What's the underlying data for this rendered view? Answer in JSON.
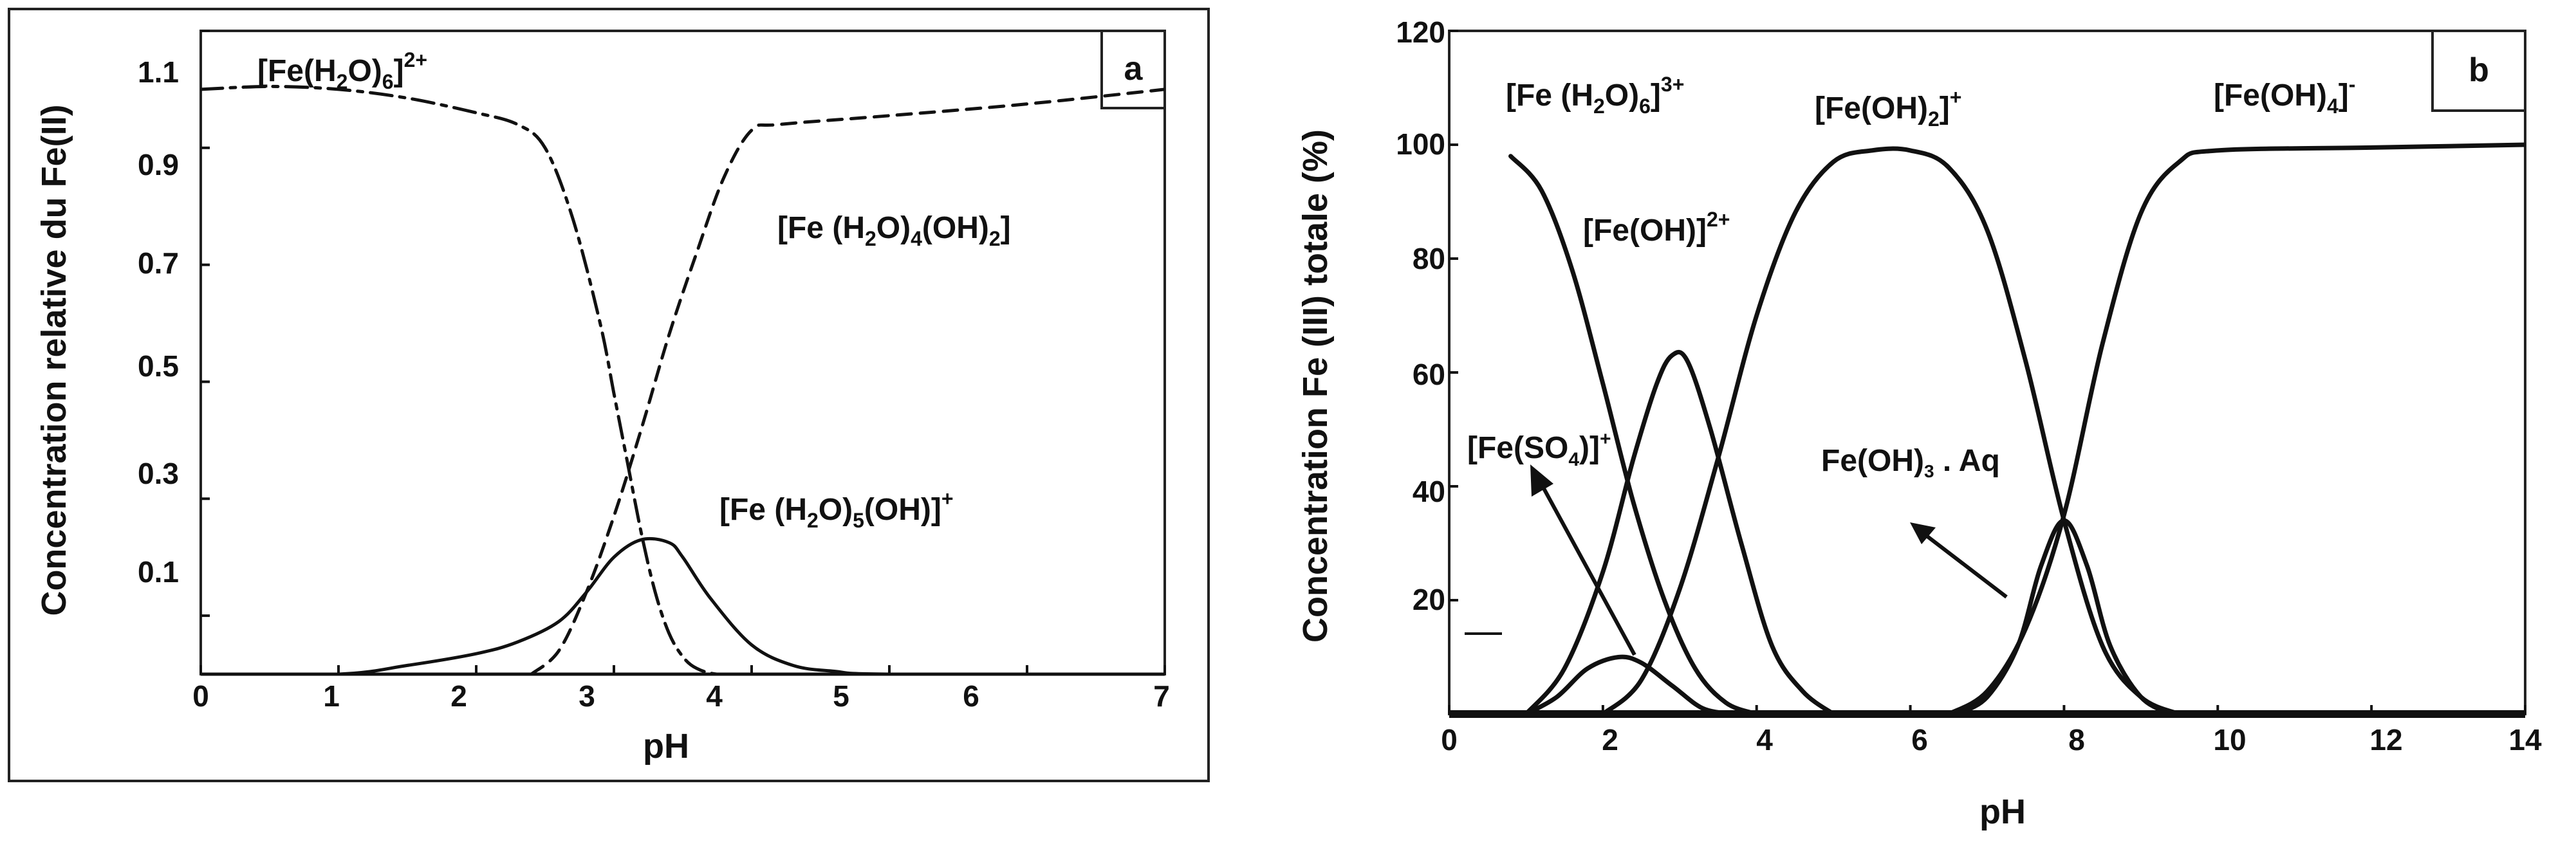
{
  "figure": {
    "panels": [
      {
        "letter": "a",
        "ylabel": "Concentration relative du Fe(II)",
        "xlabel": "pH",
        "xticks": [
          "0",
          "1",
          "2",
          "3",
          "4",
          "5",
          "6",
          "7"
        ],
        "yticks": [
          "0.1",
          "0.3",
          "0.5",
          "0.7",
          "0.9",
          "1.1"
        ],
        "species": [
          {
            "base": "[Fe(H",
            "sub": "2",
            "mid": "O)",
            "sub2": "6",
            "end": "]",
            "sup": "2+"
          },
          {
            "base": "[Fe (H",
            "sub": "2",
            "mid": "O)",
            "sub2": "4",
            "mid2": "(OH)",
            "sub3": "2",
            "end": "]"
          },
          {
            "base": "[Fe (H",
            "sub": "2",
            "mid": "O)",
            "sub2": "5",
            "mid2": "(OH)]",
            "sup": "+"
          }
        ]
      },
      {
        "letter": "b",
        "ylabel": "Concentration Fe (III) totale (%)",
        "xlabel": "pH",
        "xticks": [
          "0",
          "2",
          "4",
          "6",
          "8",
          "10",
          "12",
          "14"
        ],
        "yticks": [
          "20",
          "40",
          "60",
          "80",
          "100",
          "120"
        ],
        "species": [
          {
            "base": "[Fe (H",
            "sub": "2",
            "mid": "O)",
            "sub2": "6",
            "end": "]",
            "sup": "3+"
          },
          {
            "base": "[Fe(OH)",
            "sub": "2",
            "end": "]",
            "sup": "+"
          },
          {
            "base": "[Fe(OH)",
            "sub": "4",
            "end": "]",
            "sup": "-"
          },
          {
            "base": "[Fe(OH)]",
            "sup": "2+"
          },
          {
            "base": "[Fe(SO",
            "sub": "4",
            "end": ")]",
            "sup": "+"
          },
          {
            "base": "Fe(OH)",
            "sub": "3",
            "end": " . Aq"
          }
        ]
      }
    ]
  },
  "chart_data": [
    {
      "type": "line",
      "xlabel": "pH",
      "ylabel": "Concentration relative du Fe(II)",
      "xlim": [
        0,
        7
      ],
      "ylim": [
        0,
        1.1
      ],
      "grid": false,
      "series": [
        {
          "name": "[Fe(H2O)6]2+",
          "style": "dash-dot",
          "x": [
            0,
            0.5,
            1,
            1.5,
            2,
            2.3,
            2.5,
            2.7,
            2.9,
            3.0,
            3.1,
            3.2,
            3.3,
            3.4,
            3.5,
            3.6,
            3.75,
            4.0
          ],
          "y": [
            1.0,
            1.005,
            1.0,
            0.985,
            0.96,
            0.94,
            0.9,
            0.78,
            0.6,
            0.48,
            0.36,
            0.24,
            0.14,
            0.07,
            0.03,
            0.01,
            0.0,
            0.0
          ]
        },
        {
          "name": "[Fe (H2O)4(OH)2]",
          "style": "dashed",
          "x": [
            2.4,
            2.6,
            2.8,
            3.0,
            3.2,
            3.4,
            3.6,
            3.8,
            4.0,
            4.2,
            5.0,
            6.0,
            7.0
          ],
          "y": [
            0.0,
            0.04,
            0.14,
            0.27,
            0.42,
            0.58,
            0.72,
            0.85,
            0.93,
            0.94,
            0.955,
            0.975,
            1.0
          ]
        },
        {
          "name": "[Fe (H2O)5(OH)]+",
          "style": "solid",
          "x": [
            0,
            1,
            1.5,
            2,
            2.3,
            2.6,
            2.8,
            3.0,
            3.2,
            3.4,
            3.5,
            3.7,
            4.0,
            4.3,
            4.6,
            5.0,
            7.0
          ],
          "y": [
            0.0,
            0.0,
            0.015,
            0.035,
            0.055,
            0.09,
            0.14,
            0.2,
            0.23,
            0.225,
            0.2,
            0.13,
            0.05,
            0.015,
            0.005,
            0.0,
            0.0
          ]
        }
      ]
    },
    {
      "type": "line",
      "xlabel": "pH",
      "ylabel": "Concentration Fe (III) totale (%)",
      "xlim": [
        0,
        14
      ],
      "ylim": [
        0,
        120
      ],
      "grid": false,
      "series": [
        {
          "name": "[Fe (H2O)6]3+",
          "style": "solid",
          "x": [
            0.8,
            1.2,
            1.6,
            2.0,
            2.4,
            2.8,
            3.2,
            3.6,
            4.0
          ],
          "y": [
            98,
            92,
            78,
            58,
            37,
            20,
            8,
            2,
            0
          ]
        },
        {
          "name": "[Fe(OH)]2+",
          "style": "solid",
          "x": [
            1.0,
            1.5,
            2.0,
            2.4,
            2.7,
            2.9,
            3.1,
            3.4,
            3.8,
            4.2,
            4.6,
            5.0
          ],
          "y": [
            0,
            8,
            25,
            45,
            58,
            63,
            62,
            50,
            30,
            12,
            4,
            0
          ]
        },
        {
          "name": "[Fe(OH)2]+",
          "style": "solid",
          "x": [
            2.0,
            2.5,
            3.0,
            3.5,
            4.0,
            4.5,
            5.0,
            5.5,
            6.0,
            6.5,
            7.0,
            7.5,
            8.0,
            8.5,
            9.0,
            9.5
          ],
          "y": [
            0,
            6,
            22,
            45,
            70,
            88,
            97,
            99,
            99,
            96,
            85,
            62,
            34,
            12,
            3,
            0
          ]
        },
        {
          "name": "[Fe(OH)4]-",
          "style": "solid",
          "x": [
            6.5,
            7.0,
            7.5,
            8.0,
            8.5,
            9.0,
            9.5,
            10.0,
            12.0,
            14.0
          ],
          "y": [
            0,
            4,
            15,
            35,
            65,
            88,
            97,
            99,
            99.5,
            100
          ]
        },
        {
          "name": "[Fe(SO4)]+",
          "style": "solid",
          "x": [
            1.0,
            1.4,
            1.8,
            2.2,
            2.5,
            2.9,
            3.3,
            3.7
          ],
          "y": [
            0,
            3,
            8,
            10,
            9,
            5,
            1,
            0
          ]
        },
        {
          "name": "Fe(OH)3 . Aq",
          "style": "solid",
          "x": [
            6.6,
            7.0,
            7.4,
            7.7,
            8.0,
            8.3,
            8.6,
            9.0,
            9.4
          ],
          "y": [
            0,
            3,
            12,
            26,
            34,
            26,
            12,
            3,
            0
          ]
        }
      ]
    }
  ]
}
